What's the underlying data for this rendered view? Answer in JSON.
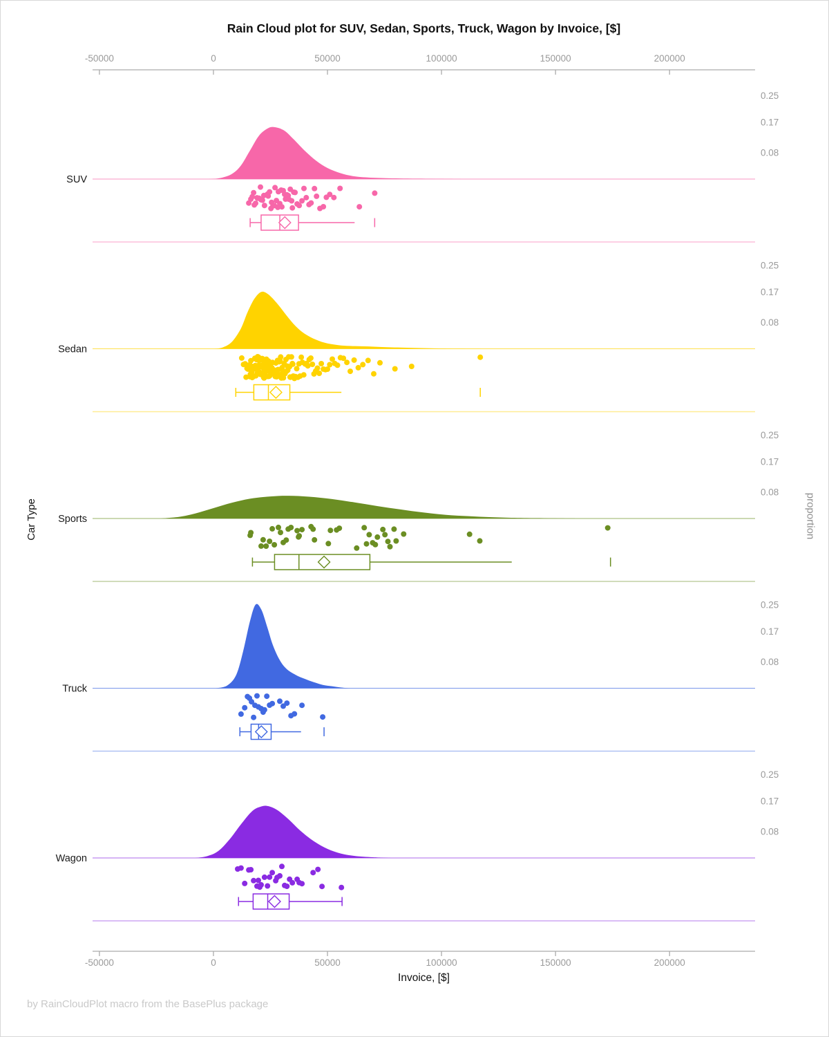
{
  "title": "Rain Cloud plot for SUV, Sedan, Sports, Truck, Wagon by Invoice, [$]",
  "footer": "by RainCloudPlot macro from the BasePlus package",
  "chart_data": {
    "type": "raincloud",
    "title": "Rain Cloud plot for SUV, Sedan, Sports, Truck, Wagon by Invoice, [$]",
    "xlabel": "Invoice, [$]",
    "ylabel": "Car Type",
    "y2label": "proportion",
    "xlim": [
      -53000,
      237500
    ],
    "x_ticks": [
      -50000,
      0,
      50000,
      100000,
      150000,
      200000
    ],
    "x_tick_labels": [
      "-50000",
      "0",
      "50000",
      "100000",
      "150000",
      "200000"
    ],
    "proportion_ticks": [
      0.25,
      0.17,
      0.08
    ],
    "proportion_tick_labels": [
      "0.25",
      "0.17",
      "0.08"
    ],
    "grid": false,
    "axis_color": "#ababab",
    "tick_label_color": "#9a9a9a",
    "categories": [
      {
        "name": "SUV",
        "color": "#F767A9",
        "density": [
          [
            -2000,
            0
          ],
          [
            3000,
            0.003
          ],
          [
            8000,
            0.015
          ],
          [
            12000,
            0.04
          ],
          [
            16000,
            0.085
          ],
          [
            20000,
            0.13
          ],
          [
            24000,
            0.152
          ],
          [
            27000,
            0.155
          ],
          [
            31000,
            0.145
          ],
          [
            35000,
            0.12
          ],
          [
            40000,
            0.085
          ],
          [
            45000,
            0.055
          ],
          [
            50000,
            0.033
          ],
          [
            56000,
            0.017
          ],
          [
            62000,
            0.008
          ],
          [
            70000,
            0.004
          ],
          [
            80000,
            0.002
          ],
          [
            95000,
            0.001
          ],
          [
            110000,
            0
          ]
        ],
        "points": [
          15500,
          16400,
          17000,
          17600,
          17900,
          18500,
          19100,
          19400,
          20000,
          20600,
          20900,
          21500,
          22100,
          22400,
          23700,
          24000,
          24600,
          25200,
          25500,
          26100,
          26700,
          27000,
          27600,
          28200,
          28500,
          29100,
          29700,
          30000,
          30600,
          31200,
          31600,
          32200,
          32800,
          33100,
          33700,
          34300,
          34600,
          35200,
          35800,
          36700,
          37600,
          38800,
          39700,
          40700,
          41900,
          42800,
          44300,
          45200,
          46700,
          48200,
          49500,
          51000,
          52800,
          55500,
          64000,
          70700
        ],
        "box": {
          "whisker_low": 16100,
          "q1": 20900,
          "median": 29100,
          "q3": 37300,
          "mean": 31300,
          "whisker_high": 61900,
          "outliers": [
            70700
          ],
          "right_cap": false
        }
      },
      {
        "name": "Sedan",
        "color": "#FFD300",
        "density": [
          [
            500,
            0
          ],
          [
            4000,
            0.004
          ],
          [
            8000,
            0.02
          ],
          [
            12000,
            0.06
          ],
          [
            15000,
            0.11
          ],
          [
            18000,
            0.15
          ],
          [
            21000,
            0.17
          ],
          [
            24000,
            0.163
          ],
          [
            28000,
            0.135
          ],
          [
            32000,
            0.1
          ],
          [
            36000,
            0.068
          ],
          [
            40000,
            0.045
          ],
          [
            45000,
            0.027
          ],
          [
            50000,
            0.016
          ],
          [
            56000,
            0.01
          ],
          [
            62000,
            0.008
          ],
          [
            68000,
            0.007
          ],
          [
            75000,
            0.005
          ],
          [
            85000,
            0.003
          ],
          [
            100000,
            0.001
          ],
          [
            120000,
            0
          ]
        ],
        "points": [
          12400,
          13200,
          13900,
          14300,
          14700,
          15000,
          15100,
          15300,
          15600,
          15900,
          16000,
          16200,
          16400,
          16700,
          16900,
          17000,
          17100,
          17400,
          17600,
          17800,
          18000,
          18100,
          18200,
          18400,
          18600,
          18800,
          19000,
          19100,
          19200,
          19400,
          19600,
          19800,
          20000,
          20100,
          20200,
          20400,
          20600,
          20800,
          21000,
          21100,
          21200,
          21400,
          21600,
          21800,
          22000,
          22100,
          22200,
          22400,
          22600,
          22800,
          23000,
          23100,
          23200,
          23400,
          23600,
          23800,
          24000,
          24100,
          24200,
          24400,
          24600,
          24800,
          25000,
          25100,
          25300,
          25600,
          25900,
          26000,
          26200,
          26500,
          26800,
          27000,
          27100,
          27400,
          27700,
          28000,
          28100,
          28300,
          28600,
          28900,
          29000,
          29200,
          29500,
          29800,
          30000,
          30100,
          30400,
          30700,
          31000,
          31200,
          31400,
          31800,
          32200,
          32400,
          32600,
          33000,
          33400,
          33600,
          33800,
          34200,
          34600,
          34800,
          35000,
          35500,
          36000,
          36500,
          37000,
          37500,
          38000,
          38500,
          39000,
          39600,
          40200,
          40800,
          41400,
          42000,
          42700,
          43400,
          44100,
          44800,
          45600,
          46400,
          47300,
          48200,
          49100,
          50000,
          51000,
          52100,
          53200,
          54400,
          55700,
          57000,
          58500,
          60000,
          61700,
          63500,
          65500,
          67800,
          70300,
          73000,
          79600,
          86900,
          117000
        ],
        "box": {
          "whisker_low": 9800,
          "q1": 17700,
          "median": 24100,
          "q3": 33500,
          "mean": 27400,
          "whisker_high": 56100,
          "outliers": [
            117000
          ],
          "right_cap": false
        }
      },
      {
        "name": "Sports",
        "color": "#6B8E23",
        "density": [
          [
            -23000,
            0
          ],
          [
            -15000,
            0.005
          ],
          [
            -8000,
            0.015
          ],
          [
            0,
            0.031
          ],
          [
            8000,
            0.047
          ],
          [
            16000,
            0.059
          ],
          [
            25000,
            0.066
          ],
          [
            33000,
            0.068
          ],
          [
            42000,
            0.065
          ],
          [
            52000,
            0.058
          ],
          [
            62000,
            0.048
          ],
          [
            72000,
            0.037
          ],
          [
            82000,
            0.027
          ],
          [
            92000,
            0.018
          ],
          [
            102000,
            0.011
          ],
          [
            112000,
            0.007
          ],
          [
            122000,
            0.004
          ],
          [
            132000,
            0.002
          ],
          [
            145000,
            0.001
          ],
          [
            160000,
            0
          ]
        ],
        "points": [
          16100,
          16400,
          20900,
          21800,
          23100,
          24600,
          25800,
          26700,
          28500,
          29400,
          30600,
          31900,
          32800,
          34000,
          36700,
          37300,
          37600,
          38800,
          42800,
          43700,
          44300,
          50400,
          51300,
          54000,
          55200,
          62800,
          66100,
          67100,
          68300,
          69800,
          71000,
          71900,
          74300,
          75200,
          76500,
          77400,
          79200,
          80100,
          83400,
          112300,
          116800,
          172900
        ],
        "box": {
          "whisker_low": 17100,
          "q1": 26800,
          "median": 37500,
          "q3": 68600,
          "mean": 48500,
          "whisker_high": 130800,
          "outliers": [
            174100
          ],
          "right_cap": false
        }
      },
      {
        "name": "Truck",
        "color": "#4169E1",
        "density": [
          [
            1000,
            0
          ],
          [
            6000,
            0.008
          ],
          [
            10000,
            0.04
          ],
          [
            13000,
            0.11
          ],
          [
            16000,
            0.2
          ],
          [
            18500,
            0.25
          ],
          [
            21000,
            0.235
          ],
          [
            23500,
            0.185
          ],
          [
            26000,
            0.13
          ],
          [
            29000,
            0.085
          ],
          [
            32000,
            0.058
          ],
          [
            36000,
            0.04
          ],
          [
            40000,
            0.028
          ],
          [
            44000,
            0.018
          ],
          [
            48000,
            0.01
          ],
          [
            52000,
            0.006
          ],
          [
            56000,
            0.002
          ],
          [
            60000,
            0
          ]
        ],
        "points": [
          12100,
          13700,
          14900,
          15800,
          16700,
          17600,
          18200,
          19100,
          19700,
          20900,
          21800,
          22400,
          23400,
          24600,
          25800,
          29100,
          30600,
          32200,
          34000,
          35500,
          38800,
          47900
        ],
        "box": {
          "whisker_low": 11600,
          "q1": 16500,
          "median": 19800,
          "q3": 25300,
          "mean": 21000,
          "whisker_high": 38400,
          "outliers": [
            48500
          ],
          "right_cap": false
        }
      },
      {
        "name": "Wagon",
        "color": "#8A2BE2",
        "density": [
          [
            -8000,
            0
          ],
          [
            -3000,
            0.005
          ],
          [
            2000,
            0.02
          ],
          [
            7000,
            0.055
          ],
          [
            12000,
            0.1
          ],
          [
            17000,
            0.14
          ],
          [
            21000,
            0.154
          ],
          [
            24000,
            0.155
          ],
          [
            28000,
            0.143
          ],
          [
            33000,
            0.115
          ],
          [
            38000,
            0.082
          ],
          [
            44000,
            0.05
          ],
          [
            50000,
            0.027
          ],
          [
            56000,
            0.013
          ],
          [
            62000,
            0.006
          ],
          [
            70000,
            0.002
          ],
          [
            78000,
            0
          ]
        ],
        "points": [
          10600,
          12100,
          13700,
          15500,
          16400,
          17600,
          19100,
          19700,
          20300,
          20900,
          22400,
          23700,
          24600,
          25800,
          27300,
          27900,
          29100,
          30000,
          31200,
          32200,
          33400,
          34600,
          36700,
          37600,
          38800,
          43700,
          45800,
          47600,
          56100
        ],
        "box": {
          "whisker_low": 11000,
          "q1": 17400,
          "median": 23800,
          "q3": 33200,
          "mean": 26800,
          "whisker_high": 56400,
          "outliers": [],
          "right_cap": true
        }
      }
    ]
  }
}
